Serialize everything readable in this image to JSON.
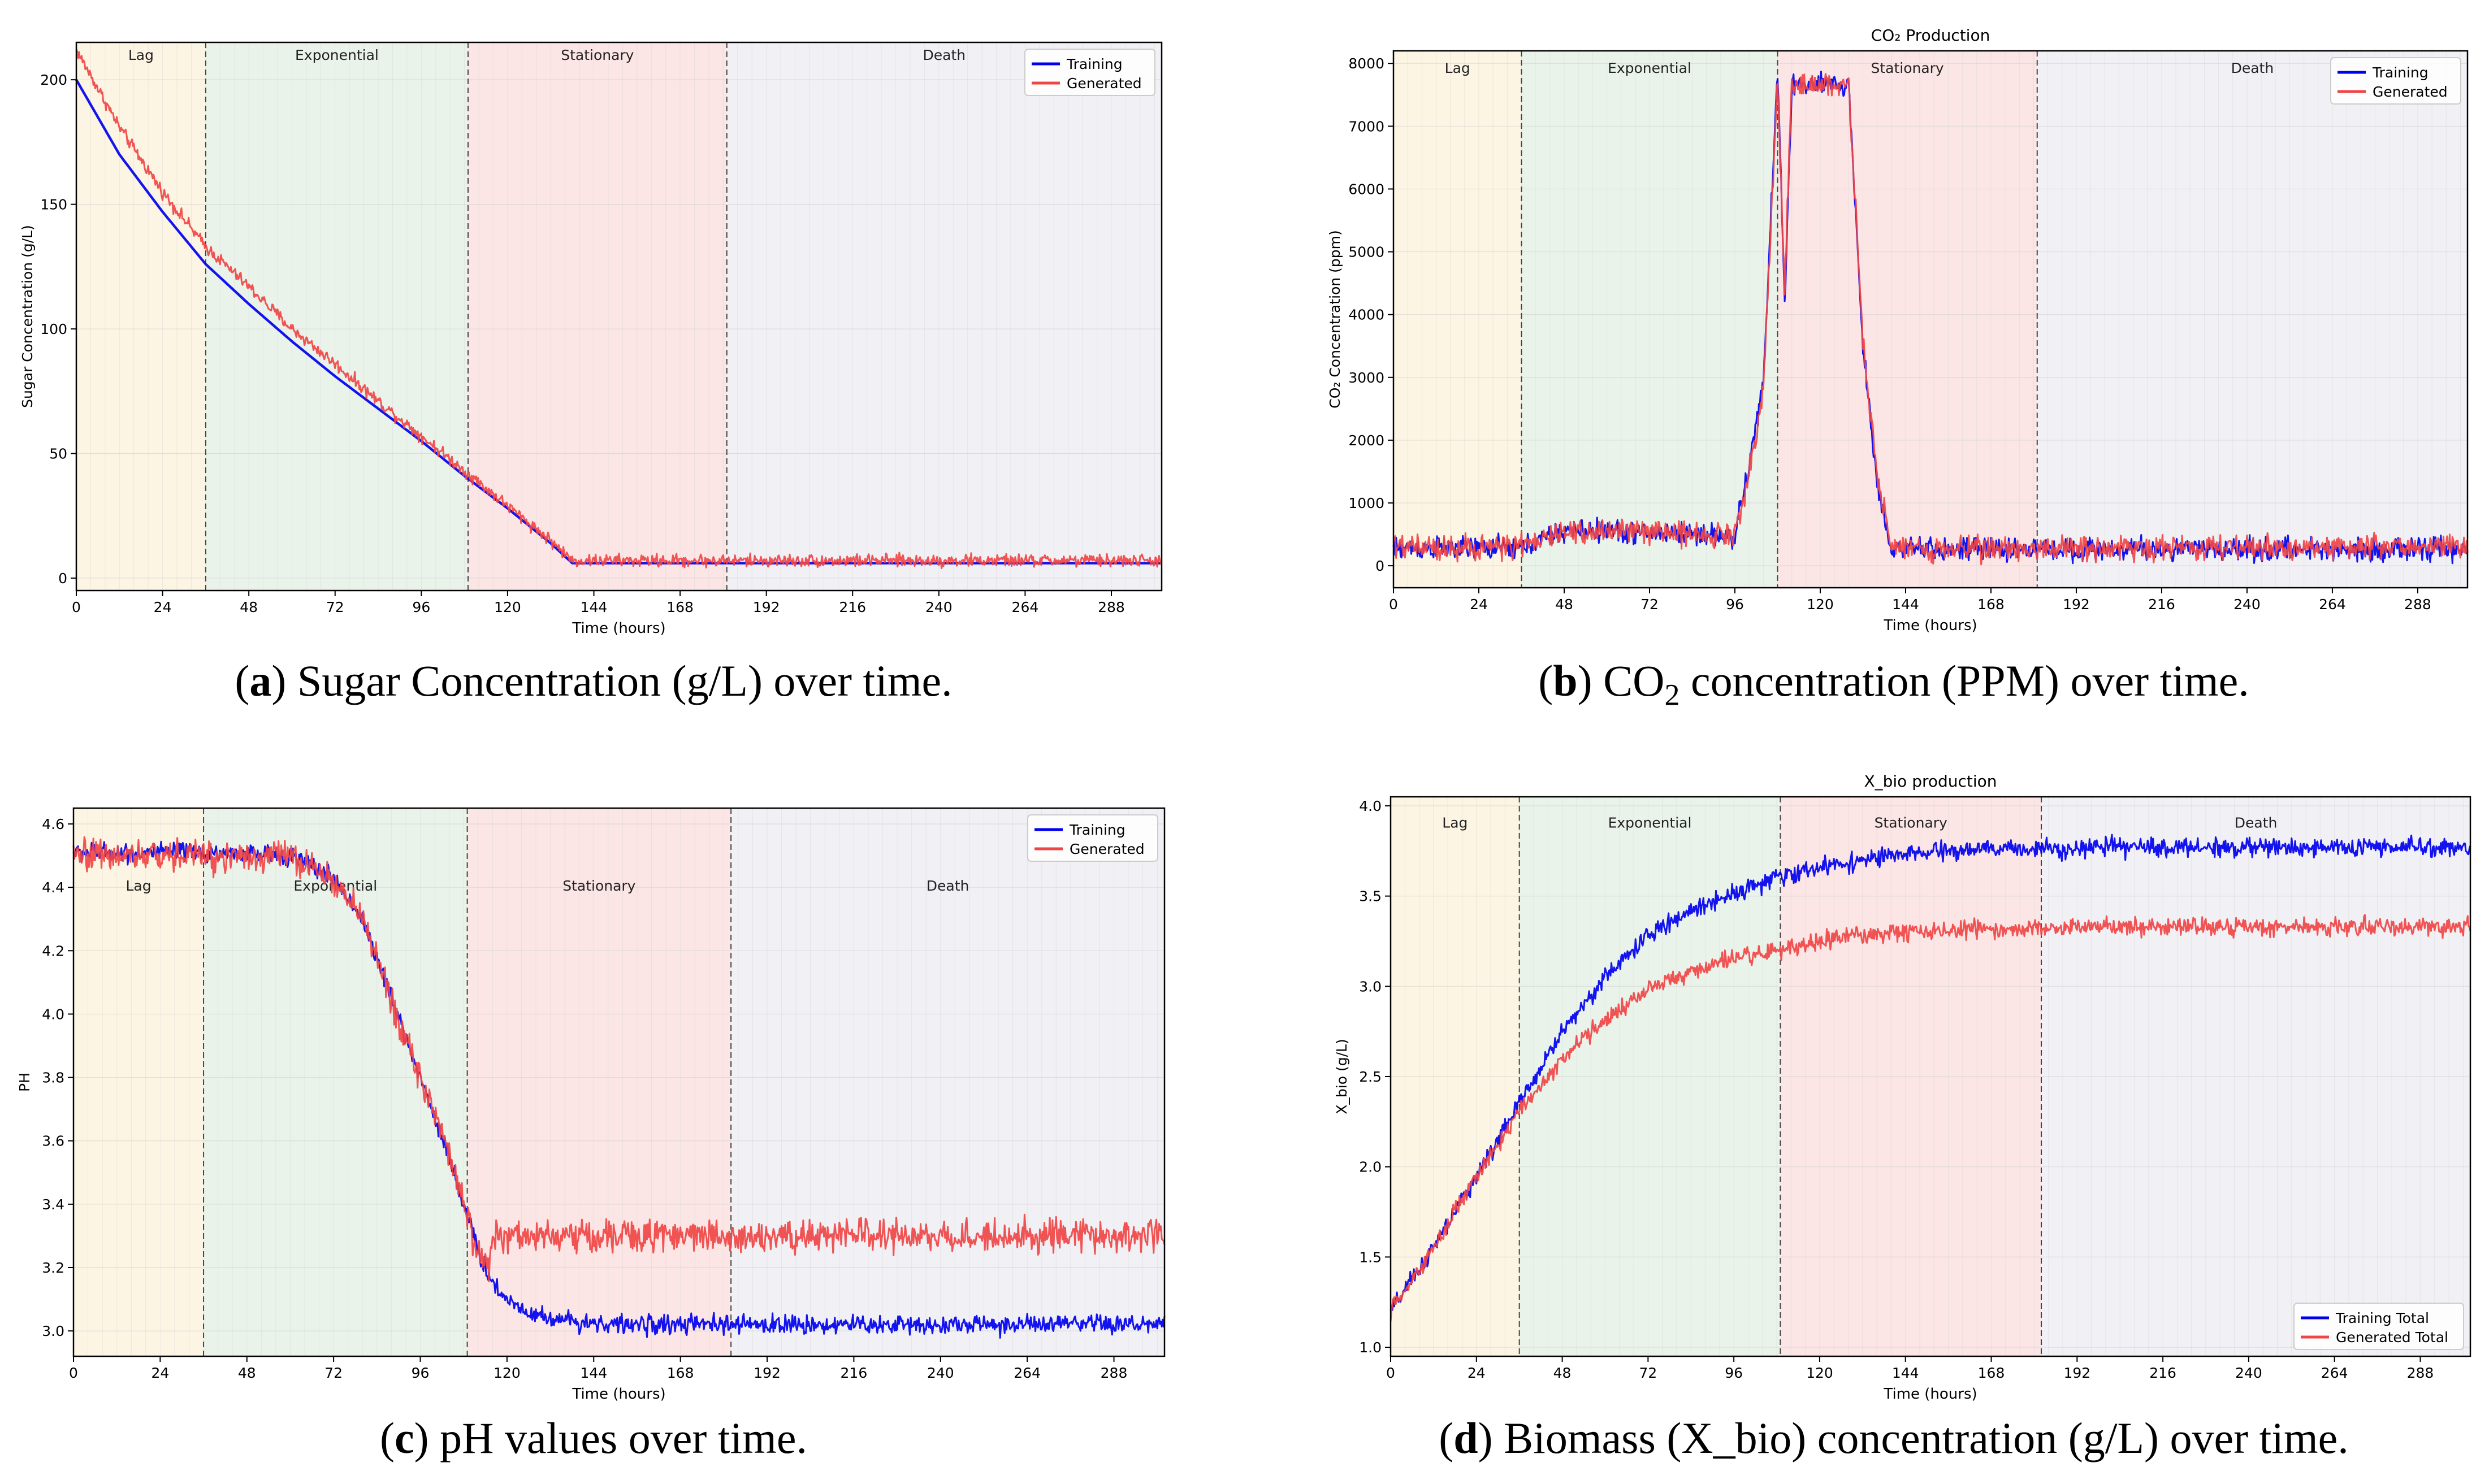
{
  "figure": {
    "captions": [
      {
        "letter": "a",
        "text": "Sugar Concentration (g/L) over time."
      },
      {
        "letter": "b",
        "text_pre": "CO",
        "text_sub": "2",
        "text_post": " concentration (PPM) over time."
      },
      {
        "letter": "c",
        "text": "pH values over time."
      },
      {
        "letter": "d",
        "text": "Biomass (X_bio) concentration (g/L) over time."
      }
    ]
  },
  "chart_data": [
    {
      "id": "a",
      "type": "line",
      "title": "",
      "xlabel": "Time (hours)",
      "ylabel": "Sugar Concentration (g/L)",
      "xlim": [
        0,
        302
      ],
      "ylim": [
        -5,
        215
      ],
      "xticks": [
        0,
        24,
        48,
        72,
        96,
        120,
        144,
        168,
        192,
        216,
        240,
        264,
        288
      ],
      "yticks": [
        0,
        50,
        100,
        150,
        200
      ],
      "phases": [
        {
          "name": "Lag",
          "start": 0,
          "end": 36,
          "color": "#fdf5e3"
        },
        {
          "name": "Exponential",
          "start": 36,
          "end": 109,
          "color": "#eaf3ea"
        },
        {
          "name": "Stationary",
          "start": 109,
          "end": 181,
          "color": "#fbe5e5"
        },
        {
          "name": "Death",
          "start": 181,
          "end": 302,
          "color": "#f1f0f5"
        }
      ],
      "phase_label_y": 208,
      "legend": {
        "position": "top-right",
        "entries": [
          "Training",
          "Generated"
        ]
      },
      "series": [
        {
          "name": "Training",
          "color": "#0000ee",
          "noise": 0,
          "x": [
            0,
            12,
            24,
            36,
            48,
            60,
            72,
            84,
            96,
            108,
            120,
            132,
            138,
            150,
            200,
            250,
            302
          ],
          "y": [
            200,
            170,
            147,
            126,
            110,
            95,
            81,
            68,
            55,
            41,
            28,
            14,
            6,
            6,
            6,
            6,
            6
          ]
        },
        {
          "name": "Generated",
          "color": "#f04545",
          "noise": 2.5,
          "x": [
            0,
            12,
            24,
            36,
            48,
            60,
            72,
            84,
            96,
            108,
            120,
            132,
            138,
            150,
            200,
            250,
            302
          ],
          "y": [
            212,
            181,
            155,
            133,
            117,
            100,
            86,
            71,
            57,
            43,
            29,
            15,
            7,
            7,
            7,
            7,
            7
          ]
        }
      ]
    },
    {
      "id": "b",
      "type": "line",
      "title": "CO₂ Production",
      "xlabel": "Time (hours)",
      "ylabel": "CO₂ Concentration (ppm)",
      "xlim": [
        0,
        302
      ],
      "ylim": [
        -350,
        8200
      ],
      "xticks": [
        0,
        24,
        48,
        72,
        96,
        120,
        144,
        168,
        192,
        216,
        240,
        264,
        288
      ],
      "yticks": [
        0,
        1000,
        2000,
        3000,
        4000,
        5000,
        6000,
        7000,
        8000
      ],
      "phases": [
        {
          "name": "Lag",
          "start": 0,
          "end": 36,
          "color": "#fdf5e3"
        },
        {
          "name": "Exponential",
          "start": 36,
          "end": 108,
          "color": "#eaf3ea"
        },
        {
          "name": "Stationary",
          "start": 108,
          "end": 181,
          "color": "#fbe5e5"
        },
        {
          "name": "Death",
          "start": 181,
          "end": 302,
          "color": "#f1f0f5"
        }
      ],
      "phase_label_y": 7850,
      "legend": {
        "position": "top-right",
        "entries": [
          "Training",
          "Generated"
        ]
      },
      "series": [
        {
          "name": "Training",
          "color": "#0000ee",
          "noise": 180,
          "x": [
            0,
            36,
            48,
            60,
            72,
            84,
            96,
            100,
            104,
            108,
            110,
            112,
            116,
            128,
            132,
            136,
            140,
            150,
            200,
            250,
            302
          ],
          "y": [
            280,
            280,
            560,
            560,
            520,
            520,
            460,
            1600,
            2900,
            7900,
            4200,
            7650,
            7650,
            7650,
            3500,
            1300,
            280,
            260,
            260,
            260,
            260
          ]
        },
        {
          "name": "Generated",
          "color": "#f04545",
          "noise": 190,
          "x": [
            0,
            36,
            48,
            60,
            72,
            84,
            96,
            100,
            104,
            108,
            110,
            112,
            116,
            128,
            132,
            136,
            140,
            150,
            200,
            250,
            302
          ],
          "y": [
            300,
            300,
            540,
            560,
            540,
            520,
            480,
            1500,
            2800,
            7800,
            4400,
            7650,
            7650,
            7650,
            3600,
            1400,
            300,
            280,
            280,
            300,
            320
          ]
        }
      ]
    },
    {
      "id": "c",
      "type": "line",
      "title": "",
      "xlabel": "Time (hours)",
      "ylabel": "PH",
      "xlim": [
        0,
        302
      ],
      "ylim": [
        2.92,
        4.65
      ],
      "xticks": [
        0,
        24,
        48,
        72,
        96,
        120,
        144,
        168,
        192,
        216,
        240,
        264,
        288
      ],
      "yticks": [
        3.0,
        3.2,
        3.4,
        3.6,
        3.8,
        4.0,
        4.2,
        4.4,
        4.6
      ],
      "phases": [
        {
          "name": "Lag",
          "start": 0,
          "end": 36,
          "color": "#fdf5e3"
        },
        {
          "name": "Exponential",
          "start": 36,
          "end": 109,
          "color": "#eaf3ea"
        },
        {
          "name": "Stationary",
          "start": 109,
          "end": 182,
          "color": "#fbe5e5"
        },
        {
          "name": "Death",
          "start": 182,
          "end": 302,
          "color": "#f1f0f5"
        }
      ],
      "phase_label_y": 4.39,
      "legend": {
        "position": "top-right",
        "entries": [
          "Training",
          "Generated"
        ]
      },
      "series": [
        {
          "name": "Training",
          "color": "#0000ee",
          "noise": 0.03,
          "x": [
            0,
            36,
            60,
            72,
            80,
            88,
            96,
            104,
            108,
            112,
            116,
            120,
            126,
            132,
            140,
            150,
            200,
            250,
            302
          ],
          "y": [
            4.51,
            4.51,
            4.5,
            4.43,
            4.3,
            4.05,
            3.8,
            3.55,
            3.4,
            3.25,
            3.15,
            3.1,
            3.06,
            3.04,
            3.03,
            3.02,
            3.02,
            3.02,
            3.02
          ]
        },
        {
          "name": "Generated",
          "color": "#f04545",
          "noise": 0.05,
          "x": [
            0,
            36,
            60,
            72,
            80,
            88,
            96,
            104,
            108,
            112,
            115,
            116,
            120,
            150,
            200,
            250,
            302
          ],
          "y": [
            4.5,
            4.5,
            4.5,
            4.42,
            4.3,
            4.05,
            3.8,
            3.55,
            3.4,
            3.24,
            3.2,
            3.3,
            3.3,
            3.3,
            3.3,
            3.3,
            3.3
          ]
        }
      ]
    },
    {
      "id": "d",
      "type": "line",
      "title": "X_bio production",
      "xlabel": "Time (hours)",
      "ylabel": "X_bio (g/L)",
      "xlim": [
        0,
        302
      ],
      "ylim": [
        0.95,
        4.05
      ],
      "xticks": [
        0,
        24,
        48,
        72,
        96,
        120,
        144,
        168,
        192,
        216,
        240,
        264,
        288
      ],
      "yticks": [
        1.0,
        1.5,
        2.0,
        2.5,
        3.0,
        3.5,
        4.0
      ],
      "phases": [
        {
          "name": "Lag",
          "start": 0,
          "end": 36,
          "color": "#fdf5e3"
        },
        {
          "name": "Exponential",
          "start": 36,
          "end": 109,
          "color": "#eaf3ea"
        },
        {
          "name": "Stationary",
          "start": 109,
          "end": 182,
          "color": "#fbe5e5"
        },
        {
          "name": "Death",
          "start": 182,
          "end": 302,
          "color": "#f1f0f5"
        }
      ],
      "phase_label_y": 3.88,
      "legend": {
        "position": "bottom-right",
        "entries": [
          "Training Total",
          "Generated Total"
        ]
      },
      "series": [
        {
          "name": "Training Total",
          "color": "#0000ee",
          "noise": 0.05,
          "x": [
            0,
            12,
            24,
            36,
            48,
            60,
            72,
            84,
            96,
            108,
            120,
            132,
            144,
            156,
            168,
            200,
            250,
            302
          ],
          "y": [
            1.2,
            1.55,
            1.95,
            2.35,
            2.75,
            3.05,
            3.28,
            3.42,
            3.52,
            3.6,
            3.66,
            3.7,
            3.73,
            3.75,
            3.76,
            3.77,
            3.77,
            3.77
          ]
        },
        {
          "name": "Generated Total",
          "color": "#f04545",
          "noise": 0.05,
          "x": [
            0,
            12,
            24,
            36,
            48,
            60,
            72,
            84,
            96,
            108,
            120,
            132,
            144,
            156,
            168,
            200,
            250,
            302
          ],
          "y": [
            1.2,
            1.55,
            1.95,
            2.3,
            2.6,
            2.82,
            2.98,
            3.08,
            3.15,
            3.2,
            3.25,
            3.28,
            3.3,
            3.31,
            3.32,
            3.33,
            3.33,
            3.33
          ]
        }
      ]
    }
  ]
}
